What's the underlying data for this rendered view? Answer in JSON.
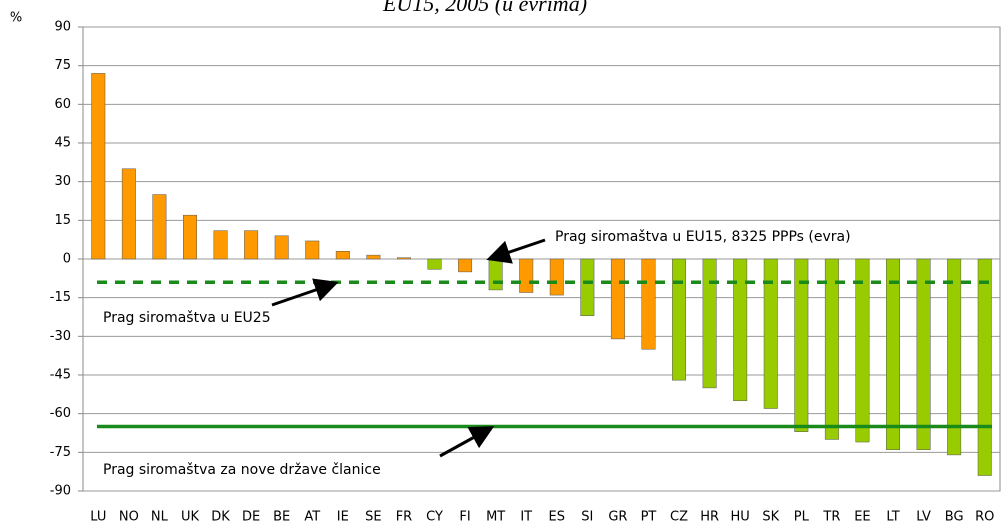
{
  "chart_data": {
    "type": "bar",
    "title": "EU15, 2005 (u evrima)",
    "y_label": "%",
    "categories": [
      "LU",
      "NO",
      "NL",
      "UK",
      "DK",
      "DE",
      "BE",
      "AT",
      "IE",
      "SE",
      "FR",
      "CY",
      "FI",
      "MT",
      "IT",
      "ES",
      "SI",
      "GR",
      "PT",
      "CZ",
      "HR",
      "HU",
      "SK",
      "PL",
      "TR",
      "EE",
      "LT",
      "LV",
      "BG",
      "RO"
    ],
    "values": [
      72,
      35,
      25,
      17,
      11,
      11,
      9,
      7,
      3,
      1.5,
      0.5,
      -4,
      -5,
      -12,
      -13,
      -14,
      -22,
      -31,
      -35,
      -47,
      -50,
      -55,
      -58,
      -67,
      -70,
      -71,
      -74,
      -74,
      -76,
      -84
    ],
    "colors": [
      "#ff9900",
      "#ff9900",
      "#ff9900",
      "#ff9900",
      "#ff9900",
      "#ff9900",
      "#ff9900",
      "#ff9900",
      "#ff9900",
      "#ff9900",
      "#ff9900",
      "#99cc00",
      "#ff9900",
      "#99cc00",
      "#ff9900",
      "#ff9900",
      "#99cc00",
      "#ff9900",
      "#ff9900",
      "#99cc00",
      "#99cc00",
      "#99cc00",
      "#99cc00",
      "#99cc00",
      "#99cc00",
      "#99cc00",
      "#99cc00",
      "#99cc00",
      "#99cc00",
      "#99cc00"
    ],
    "ylim": [
      -90,
      90
    ],
    "yticks": [
      -90,
      -75,
      -60,
      -45,
      -30,
      -15,
      0,
      15,
      30,
      45,
      60,
      75,
      90
    ],
    "grid": true,
    "thresholds": [
      {
        "label": "Prag siromaštva u EU15, 8325 PPPs (evra)",
        "value": 0
      },
      {
        "label": "Prag siromaštva u EU25",
        "value": -9,
        "color": "#1a8a1a",
        "style": "dashed"
      },
      {
        "label": "Prag siromaštva za nove države članice",
        "value": -65,
        "color": "#1a8a1a",
        "style": "solid"
      }
    ]
  }
}
